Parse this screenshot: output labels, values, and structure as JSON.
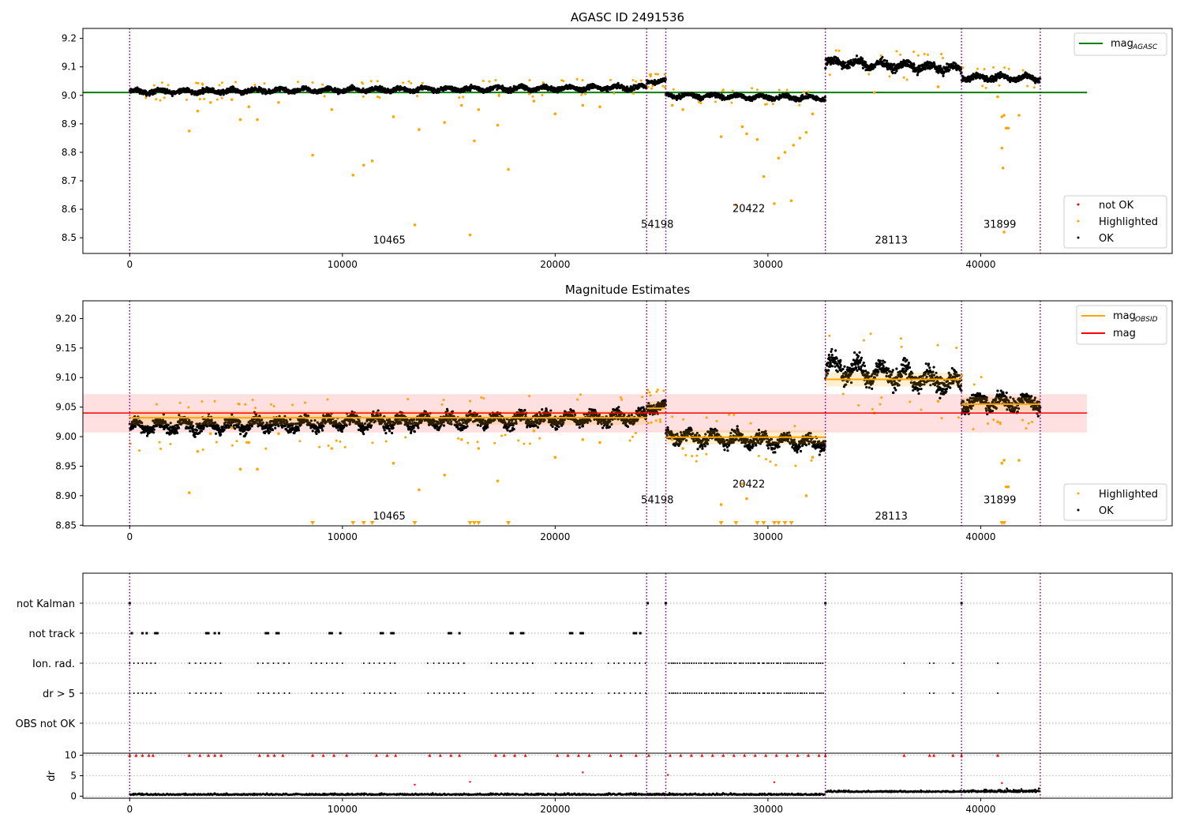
{
  "chart_data": [
    {
      "type": "scatter",
      "title": "AGASC ID 2491536",
      "xlim": [
        -2200,
        49000
      ],
      "ylim": [
        8.445,
        9.235
      ],
      "xticks": [
        0,
        10000,
        20000,
        30000,
        40000
      ],
      "yticks": [
        8.5,
        8.6,
        8.7,
        8.8,
        8.9,
        9.0,
        9.1,
        9.2
      ],
      "reference_line": {
        "name": "mag",
        "subscript": "AGASC",
        "value": 9.01,
        "x_range": [
          -2200,
          45000
        ],
        "color": "#008000"
      },
      "legend_lines": [
        {
          "label": "mag",
          "subscript": "AGASC",
          "color": "#008000"
        }
      ],
      "legend_points": [
        {
          "label": "not OK",
          "color": "#ff0000"
        },
        {
          "label": "Highlighted",
          "color": "#ffa500"
        },
        {
          "label": "OK",
          "color": "#000000"
        }
      ],
      "obsid_boundaries": [
        0,
        24300,
        25200,
        32700,
        39100,
        42800
      ],
      "obsid_labels": [
        {
          "text": "10465",
          "x": 12200,
          "y": 8.48
        },
        {
          "text": "54198",
          "x": 24800,
          "y": 8.535
        },
        {
          "text": "20422",
          "x": 29100,
          "y": 8.59
        },
        {
          "text": "28113",
          "x": 35800,
          "y": 8.48
        },
        {
          "text": "31899",
          "x": 40900,
          "y": 8.535
        }
      ],
      "segments": [
        {
          "obsid": "10465",
          "x": [
            0,
            24300
          ],
          "mean": 9.02,
          "trend": 0.015,
          "spread": 0.012
        },
        {
          "obsid": "54198",
          "x": [
            24300,
            25200
          ],
          "mean": 9.05,
          "trend": 0.0,
          "spread": 0.01
        },
        {
          "obsid": "20422",
          "x": [
            25200,
            32700
          ],
          "mean": 8.995,
          "trend": -0.01,
          "spread": 0.012
        },
        {
          "obsid": "28113",
          "x": [
            32700,
            39100
          ],
          "mean": 9.105,
          "trend": -0.025,
          "spread": 0.02
        },
        {
          "obsid": "31899",
          "x": [
            39100,
            42800
          ],
          "mean": 9.062,
          "trend": 0.0,
          "spread": 0.015
        }
      ],
      "highlighted_outliers": [
        [
          2800,
          8.875
        ],
        [
          3200,
          8.945
        ],
        [
          3800,
          8.975
        ],
        [
          4800,
          8.985
        ],
        [
          5200,
          8.915
        ],
        [
          5600,
          8.96
        ],
        [
          6000,
          8.915
        ],
        [
          7000,
          8.975
        ],
        [
          8600,
          8.79
        ],
        [
          9500,
          8.95
        ],
        [
          10500,
          8.72
        ],
        [
          11000,
          8.755
        ],
        [
          11400,
          8.77
        ],
        [
          12400,
          8.925
        ],
        [
          13400,
          8.545
        ],
        [
          13600,
          8.88
        ],
        [
          14800,
          8.905
        ],
        [
          15600,
          8.965
        ],
        [
          16000,
          8.51
        ],
        [
          16200,
          8.84
        ],
        [
          16400,
          8.95
        ],
        [
          17300,
          8.895
        ],
        [
          17800,
          8.74
        ],
        [
          19000,
          8.98
        ],
        [
          20000,
          8.935
        ],
        [
          21300,
          8.965
        ],
        [
          22100,
          8.96
        ],
        [
          25500,
          8.965
        ],
        [
          26000,
          8.95
        ],
        [
          27800,
          8.855
        ],
        [
          28500,
          8.615
        ],
        [
          28800,
          8.89
        ],
        [
          29000,
          8.865
        ],
        [
          29500,
          8.845
        ],
        [
          29800,
          8.715
        ],
        [
          30300,
          8.62
        ],
        [
          30500,
          8.78
        ],
        [
          30800,
          8.8
        ],
        [
          31100,
          8.63
        ],
        [
          31200,
          8.825
        ],
        [
          31500,
          8.85
        ],
        [
          31800,
          8.87
        ],
        [
          32100,
          8.935
        ],
        [
          35000,
          9.01
        ],
        [
          38000,
          9.03
        ],
        [
          40800,
          8.995
        ],
        [
          41000,
          8.925
        ],
        [
          41100,
          8.93
        ],
        [
          41200,
          8.885
        ],
        [
          41000,
          8.815
        ],
        [
          41050,
          8.745
        ],
        [
          41100,
          8.52
        ],
        [
          41300,
          8.885
        ],
        [
          41800,
          8.93
        ]
      ]
    },
    {
      "type": "scatter",
      "title": "Magnitude Estimates",
      "xlim": [
        -2200,
        49000
      ],
      "ylim": [
        8.849,
        9.23
      ],
      "xticks": [
        0,
        10000,
        20000,
        30000,
        40000
      ],
      "yticks": [
        8.85,
        8.9,
        8.95,
        9.0,
        9.05,
        9.1,
        9.15,
        9.2
      ],
      "mag_line": {
        "name": "mag",
        "value": 9.04,
        "band": [
          9.007,
          9.072
        ],
        "x_range": [
          -2200,
          45000
        ],
        "color": "#ff0000"
      },
      "obsid_means": [
        {
          "obsid": "10465",
          "x": [
            0,
            24300
          ],
          "mag": 9.032
        },
        {
          "obsid": "54198",
          "x": [
            24300,
            25200
          ],
          "mag": 9.048
        },
        {
          "obsid": "20422",
          "x": [
            25200,
            32700
          ],
          "mag": 8.999
        },
        {
          "obsid": "28113",
          "x": [
            32700,
            39100
          ],
          "mag": 9.097
        },
        {
          "obsid": "31899",
          "x": [
            39100,
            42800
          ],
          "mag": 9.055
        }
      ],
      "legend_lines": [
        {
          "label": "mag",
          "subscript": "OBSID",
          "color": "#ffa500"
        },
        {
          "label": "mag",
          "subscript": "",
          "color": "#ff0000"
        }
      ],
      "legend_points": [
        {
          "label": "Highlighted",
          "color": "#ffa500"
        },
        {
          "label": "OK",
          "color": "#000000"
        }
      ],
      "obsid_boundaries": [
        0,
        24300,
        25200,
        32700,
        39100,
        42800
      ],
      "obsid_labels": [
        {
          "text": "10465",
          "x": 12200,
          "y": 8.86
        },
        {
          "text": "54198",
          "x": 24800,
          "y": 8.887
        },
        {
          "text": "20422",
          "x": 29100,
          "y": 8.914
        },
        {
          "text": "28113",
          "x": 35800,
          "y": 8.86
        },
        {
          "text": "31899",
          "x": 40900,
          "y": 8.887
        }
      ],
      "below_range_markers_x": [
        8600,
        10500,
        11000,
        11400,
        13400,
        16000,
        16200,
        16400,
        17800,
        27800,
        28500,
        29500,
        29800,
        30300,
        30500,
        30800,
        31100,
        41000,
        41100
      ],
      "segments": [
        {
          "obsid": "10465",
          "x": [
            0,
            24300
          ],
          "mean": 9.025,
          "trend": 0.016,
          "spread": 0.016
        },
        {
          "obsid": "54198",
          "x": [
            24300,
            25200
          ],
          "mean": 9.05,
          "trend": 0.0,
          "spread": 0.012
        },
        {
          "obsid": "20422",
          "x": [
            25200,
            32700
          ],
          "mean": 8.995,
          "trend": -0.012,
          "spread": 0.016
        },
        {
          "obsid": "28113",
          "x": [
            32700,
            39100
          ],
          "mean": 9.105,
          "trend": -0.03,
          "spread": 0.025
        },
        {
          "obsid": "31899",
          "x": [
            39100,
            42800
          ],
          "mean": 9.058,
          "trend": 0.0,
          "spread": 0.018
        }
      ]
    },
    {
      "type": "scatter",
      "title": "",
      "xlim": [
        -2200,
        49000
      ],
      "xticks": [
        0,
        10000,
        20000,
        30000,
        40000
      ],
      "flag_rows": [
        "not Kalman",
        "not track",
        "Ion. rad.",
        "dr > 5",
        "OBS not OK"
      ],
      "flag_events": {
        "not Kalman": [
          0,
          24350,
          25200,
          32700,
          39100
        ],
        "not track": [
          100,
          600,
          800,
          1200,
          1300,
          3600,
          3700,
          4000,
          4200,
          6400,
          6500,
          6900,
          7000,
          9400,
          9500,
          9900,
          11800,
          11900,
          12300,
          12400,
          15000,
          15100,
          15500,
          17900,
          18000,
          18400,
          18500,
          20700,
          20800,
          21200,
          21300,
          23700,
          23800,
          24000
        ],
        "cluster_centers": [
          800,
          3800,
          6700,
          9700,
          12000,
          15000,
          18000,
          20800,
          23500
        ]
      },
      "dr_axis": {
        "label": "dr",
        "ylim": [
          -0.5,
          10.5
        ],
        "yticks": [
          0,
          5,
          10
        ]
      }
    }
  ]
}
